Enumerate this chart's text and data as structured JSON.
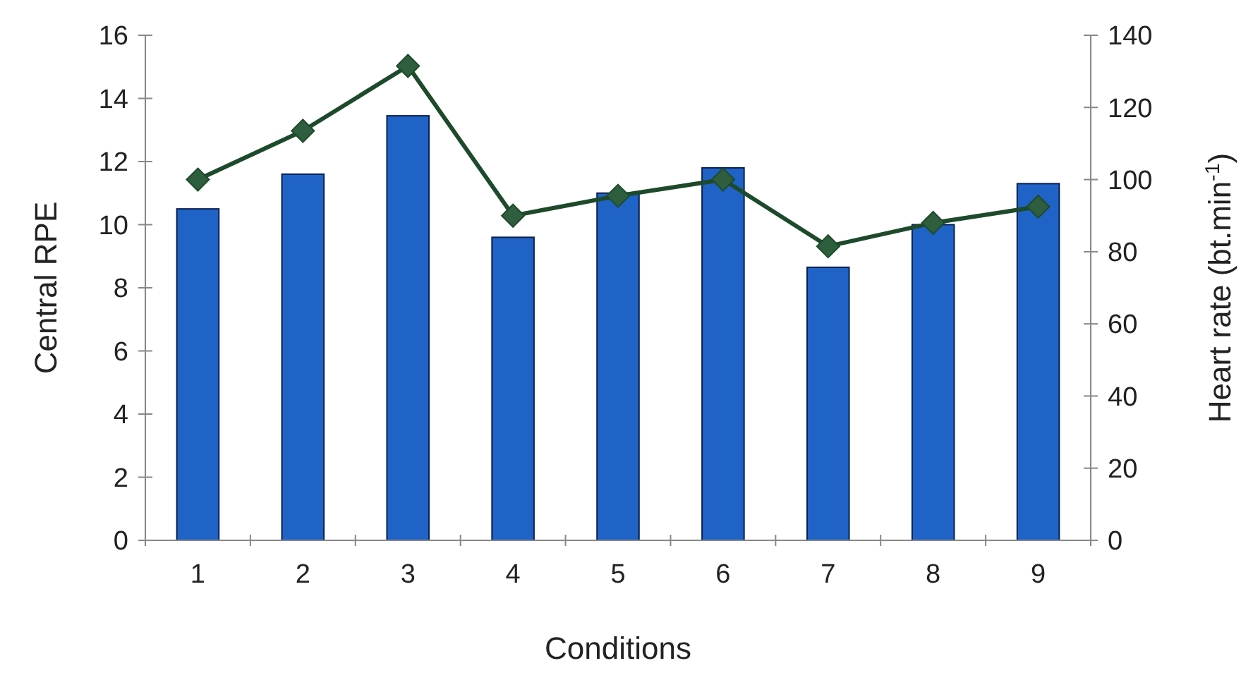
{
  "chart_data": {
    "type": "bar",
    "xlabel": "Conditions",
    "ylabel": "Central RPE",
    "y2label": "Heart rate (bt.min$^{-1}$)",
    "categories": [
      "1",
      "2",
      "3",
      "4",
      "5",
      "6",
      "7",
      "8",
      "9"
    ],
    "series": [
      {
        "color": "#1f63c6",
        "values": [
          10.5,
          11.6,
          13.45,
          9.6,
          11.0,
          11.8,
          8.65,
          10.0,
          11.3
        ]
      },
      {
        "type": "line",
        "axis": "y2",
        "color": "#1e4a2c",
        "marker": "diamond",
        "values": [
          100,
          113.5,
          131.5,
          90,
          95.5,
          100,
          81.5,
          88,
          92.5
        ]
      }
    ],
    "ylim": [
      0,
      16
    ],
    "yticks": [
      0,
      2,
      4,
      6,
      8,
      10,
      12,
      14,
      16
    ],
    "y2lim": [
      0,
      140
    ],
    "y2ticks": [
      0,
      20,
      40,
      60,
      80,
      100,
      120,
      140
    ],
    "grid": false
  }
}
